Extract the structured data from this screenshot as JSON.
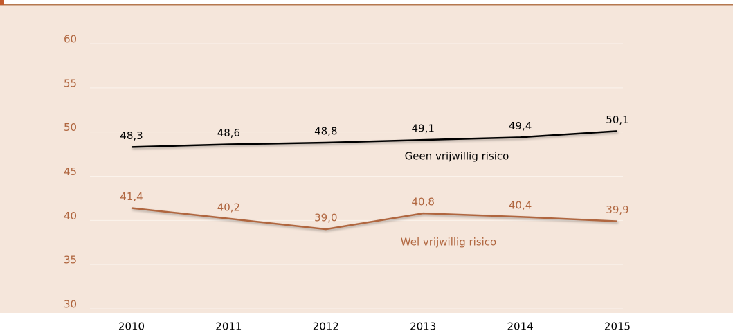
{
  "chart_data": {
    "type": "line",
    "categories": [
      "2010",
      "2011",
      "2012",
      "2013",
      "2014",
      "2015"
    ],
    "series": [
      {
        "name": "Geen vrijwillig risico",
        "color": "#000000",
        "values": [
          48.3,
          48.6,
          48.8,
          49.1,
          49.4,
          50.1
        ],
        "value_labels": [
          "48,3",
          "48,6",
          "48,8",
          "49,1",
          "49,4",
          "50,1"
        ]
      },
      {
        "name": "Wel vrijwillig risico",
        "color": "#b0663f",
        "values": [
          41.4,
          40.2,
          39.0,
          40.8,
          40.4,
          39.9
        ],
        "value_labels": [
          "41,4",
          "40,2",
          "39,0",
          "40,8",
          "40,4",
          "39,9"
        ]
      }
    ],
    "ylim": [
      30,
      60
    ],
    "yticks": [
      30,
      35,
      40,
      45,
      50,
      55,
      60
    ],
    "grid": true
  }
}
